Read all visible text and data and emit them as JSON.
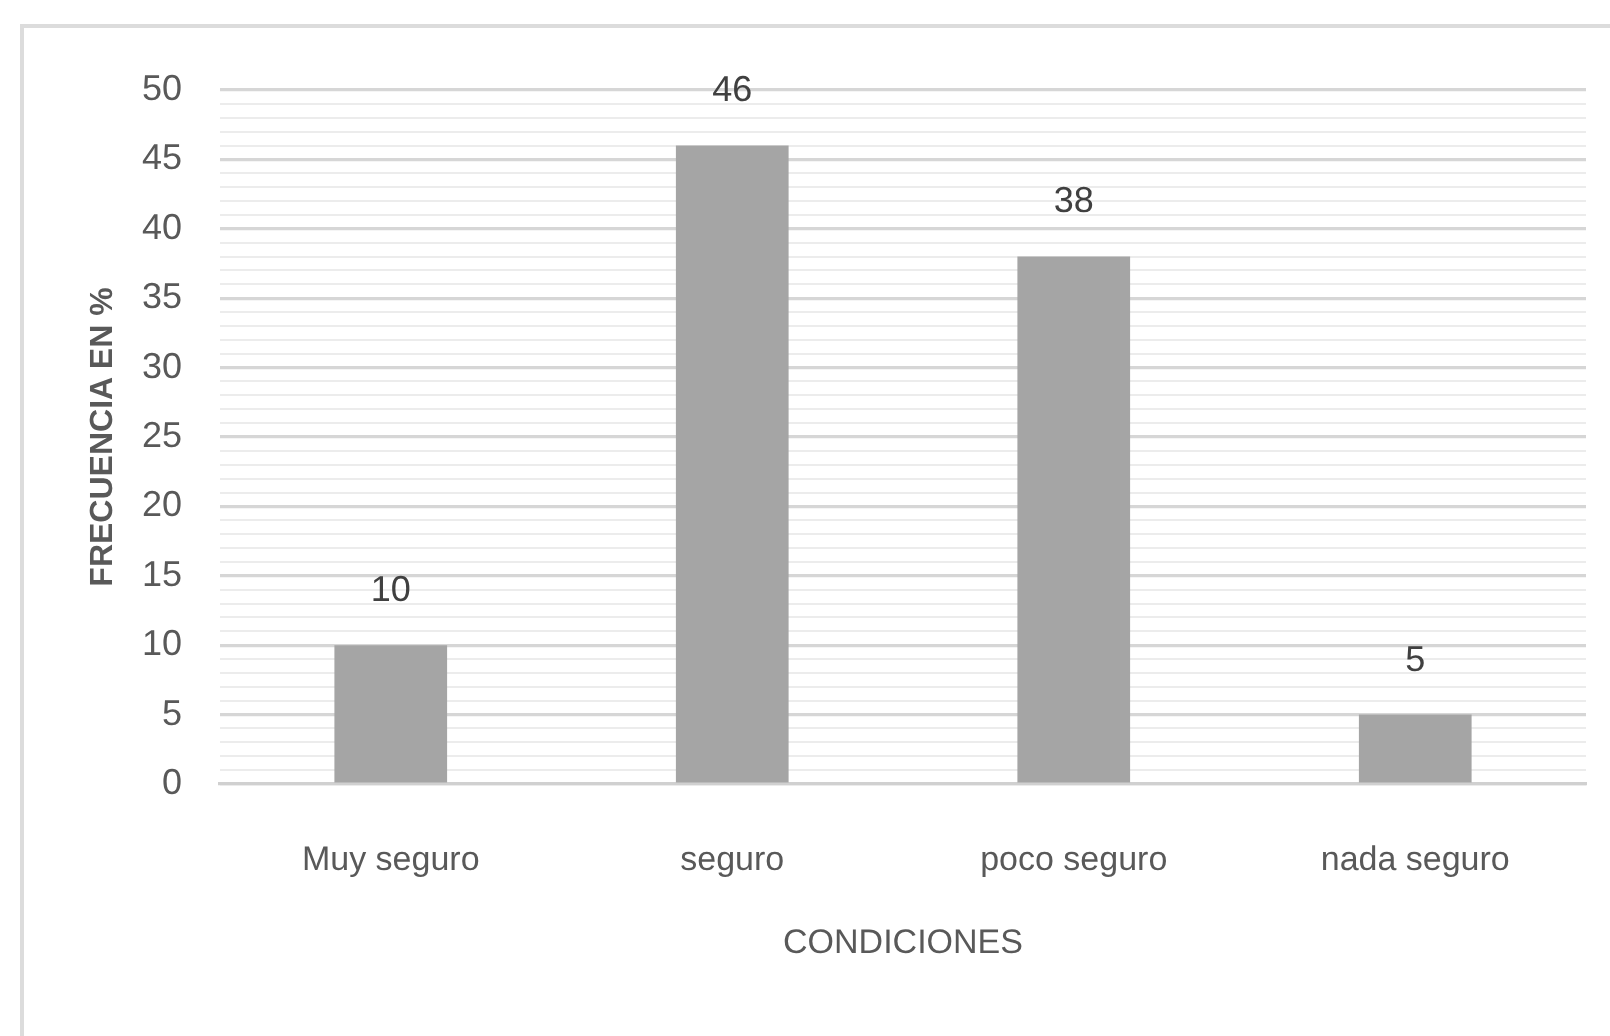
{
  "chart_data": {
    "type": "bar",
    "categories": [
      "Muy seguro",
      "seguro",
      "poco seguro",
      "nada seguro"
    ],
    "values": [
      10,
      46,
      38,
      5
    ],
    "color": "#a5a5a5",
    "data_labels": true,
    "xlabel": "CONDICIONES",
    "ylabel": "FRECUENCIA EN %",
    "ylim": [
      0,
      50
    ],
    "yticks": [
      0,
      {
        "value": 1,
        "label": null
      },
      {
        "value": 2,
        "label": null
      },
      {
        "value": 3,
        "label": null
      },
      {
        "value": 4,
        "label": null
      },
      5,
      {
        "value": 6,
        "label": null
      },
      {
        "value": 7,
        "label": null
      },
      {
        "value": 8,
        "label": null
      },
      {
        "value": 9,
        "label": null
      },
      10,
      {
        "value": 11,
        "label": null
      },
      {
        "value": 12,
        "label": null
      },
      {
        "value": 13,
        "label": null
      },
      {
        "value": 14,
        "label": null
      },
      15,
      {
        "value": 16,
        "label": null
      },
      {
        "value": 17,
        "label": null
      },
      {
        "value": 18,
        "label": null
      },
      {
        "value": 19,
        "label": null
      },
      20,
      {
        "value": 21,
        "label": null
      },
      {
        "value": 22,
        "label": null
      },
      {
        "value": 23,
        "label": null
      },
      {
        "value": 24,
        "label": null
      },
      25,
      {
        "value": 26,
        "label": null
      },
      {
        "value": 27,
        "label": null
      },
      {
        "value": 28,
        "label": null
      },
      {
        "value": 29,
        "label": null
      },
      30,
      {
        "value": 31,
        "label": null
      },
      {
        "value": 32,
        "label": null
      },
      {
        "value": 33,
        "label": null
      },
      {
        "value": 34,
        "label": null
      },
      35,
      {
        "value": 36,
        "label": null
      },
      {
        "value": 37,
        "label": null
      },
      {
        "value": 38,
        "label": null
      },
      {
        "value": 39,
        "label": null
      },
      40,
      {
        "value": 41,
        "label": null
      },
      {
        "value": 42,
        "label": null
      },
      {
        "value": 43,
        "label": null
      },
      {
        "value": 44,
        "label": null
      },
      45,
      {
        "value": 46,
        "label": null
      },
      {
        "value": 47,
        "label": null
      },
      {
        "value": 48,
        "label": null
      },
      {
        "value": 49,
        "label": null
      },
      50
    ],
    "grid": "y"
  }
}
